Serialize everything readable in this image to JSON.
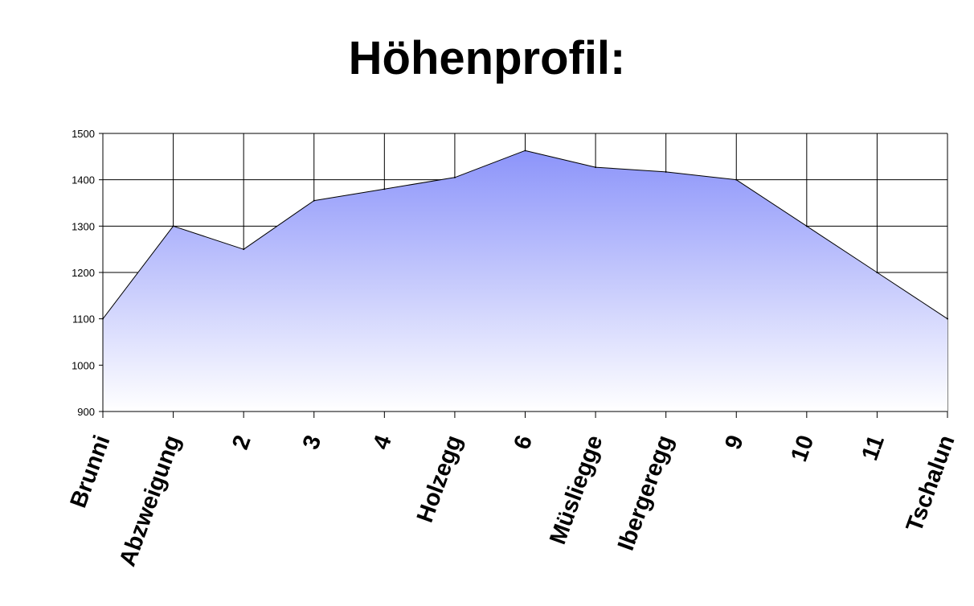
{
  "chart_data": {
    "type": "area",
    "title": "Höhenprofil:",
    "xlabel": "",
    "ylabel": "",
    "categories": [
      "Brunni",
      "Abzweigung",
      "2",
      "3",
      "4",
      "Holzegg",
      "6",
      "Müsliegge",
      "Ibergeregg",
      "9",
      "10",
      "11",
      "Tschalun"
    ],
    "values": [
      1100,
      1300,
      1250,
      1355,
      1380,
      1405,
      1463,
      1427,
      1417,
      1400,
      1300,
      1200,
      1100
    ],
    "ylim": [
      900,
      1500
    ],
    "yticks": [
      900,
      1000,
      1100,
      1200,
      1300,
      1400,
      1500
    ],
    "grid": true,
    "legend": "none",
    "colors": {
      "fill_top": "#8C94FA",
      "fill_bottom": "#FFFFFF",
      "line": "#000000",
      "grid": "#000000"
    }
  }
}
